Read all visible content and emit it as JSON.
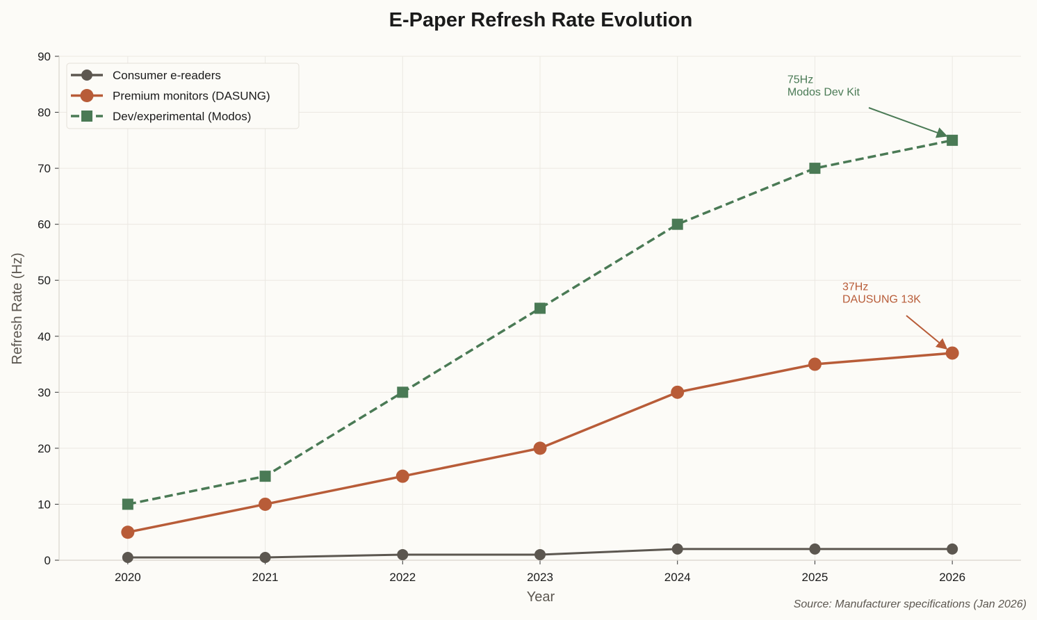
{
  "chart_data": {
    "type": "line",
    "title": "E-Paper Refresh Rate Evolution",
    "xlabel": "Year",
    "ylabel": "Refresh Rate (Hz)",
    "x": [
      2020,
      2021,
      2022,
      2023,
      2024,
      2025,
      2026
    ],
    "xlim": [
      2019.5,
      2026.5
    ],
    "ylim": [
      0,
      90
    ],
    "yticks": [
      0,
      10,
      20,
      30,
      40,
      50,
      60,
      70,
      80,
      90
    ],
    "grid": true,
    "legend_placement": "top-left",
    "series": [
      {
        "name": "Consumer e-readers",
        "values": [
          0.5,
          0.5,
          1,
          1,
          2,
          2,
          2
        ],
        "color": "#5c5750",
        "marker": "circle",
        "linestyle": "solid"
      },
      {
        "name": "Premium monitors (DASUNG)",
        "values": [
          5,
          10,
          15,
          20,
          30,
          35,
          37
        ],
        "color": "#b85c38",
        "marker": "circle",
        "linestyle": "solid"
      },
      {
        "name": "Dev/experimental (Modos)",
        "values": [
          10,
          15,
          30,
          45,
          60,
          70,
          75
        ],
        "color": "#4a7a55",
        "marker": "square",
        "linestyle": "dashed"
      }
    ],
    "annotations": [
      {
        "lines": [
          "75Hz",
          "Modos Dev Kit"
        ],
        "x": 2026,
        "y": 75,
        "text_x": 2024.8,
        "text_y": 83,
        "color": "#4a7a55"
      },
      {
        "lines": [
          "37Hz",
          "DAUSUNG 13K"
        ],
        "x": 2026,
        "y": 37,
        "text_x": 2025.2,
        "text_y": 46,
        "color": "#b85c38"
      }
    ],
    "source": "Source: Manufacturer specifications (Jan 2026)"
  }
}
